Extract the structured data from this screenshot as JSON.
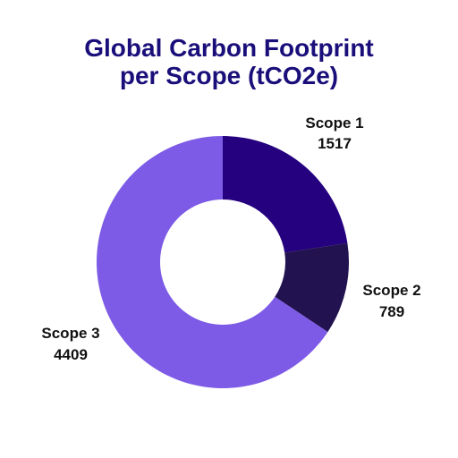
{
  "chart_data": {
    "type": "pie",
    "variant": "donut",
    "title_lines": [
      "Global Carbon Footprint",
      "per Scope (tCO2e)"
    ],
    "slices": [
      {
        "label": "Scope 1",
        "value": 1517,
        "value_text": "1517",
        "color": "#25007f"
      },
      {
        "label": "Scope 2",
        "value": 789,
        "value_text": "789",
        "color": "#22124f"
      },
      {
        "label": "Scope 3",
        "value": 4409,
        "value_text": "4409",
        "color": "#7d5be6"
      }
    ]
  }
}
